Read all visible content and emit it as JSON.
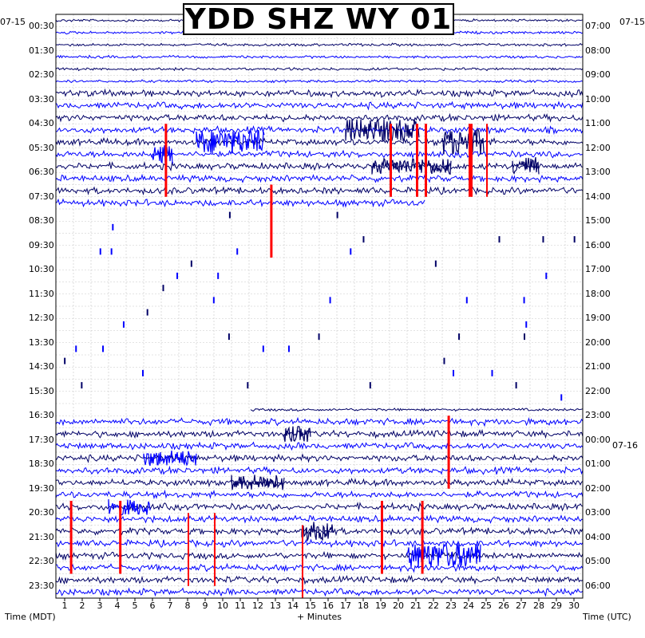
{
  "chart_data": {
    "type": "heatmap",
    "title": "YDD SHZ WY 01",
    "left_date": "07-15",
    "right_date_top": "07-15",
    "right_date_mid": "07-16",
    "left_axis_title": "Time (MDT)",
    "right_axis_title": "Time (UTC)",
    "bottom_axis_title": "+ Minutes",
    "left_ticks": [
      "00:30",
      "01:30",
      "02:30",
      "03:30",
      "04:30",
      "05:30",
      "06:30",
      "07:30",
      "08:30",
      "09:30",
      "10:30",
      "11:30",
      "12:30",
      "13:30",
      "14:30",
      "15:30",
      "16:30",
      "17:30",
      "18:30",
      "19:30",
      "20:30",
      "21:30",
      "22:30",
      "23:30"
    ],
    "right_ticks": [
      "07:00",
      "08:00",
      "09:00",
      "10:00",
      "11:00",
      "12:00",
      "13:00",
      "14:00",
      "15:00",
      "16:00",
      "17:00",
      "18:00",
      "19:00",
      "20:00",
      "21:00",
      "22:00",
      "23:00",
      "00:00",
      "01:00",
      "02:00",
      "03:00",
      "04:00",
      "05:00",
      "06:00"
    ],
    "x_ticks": [
      "1",
      "2",
      "3",
      "4",
      "5",
      "6",
      "7",
      "8",
      "9",
      "10",
      "11",
      "12",
      "13",
      "14",
      "15",
      "16",
      "17",
      "18",
      "19",
      "20",
      "21",
      "22",
      "23",
      "24",
      "25",
      "26",
      "27",
      "28",
      "29",
      "30"
    ],
    "xlim": [
      0,
      30
    ],
    "rows_per_hour": 2,
    "trace_colors": [
      "#000066",
      "#0000ff"
    ],
    "clip_color": "#ff0000",
    "grid": true,
    "gap_start": "07:30",
    "gap_end": "16:00"
  }
}
